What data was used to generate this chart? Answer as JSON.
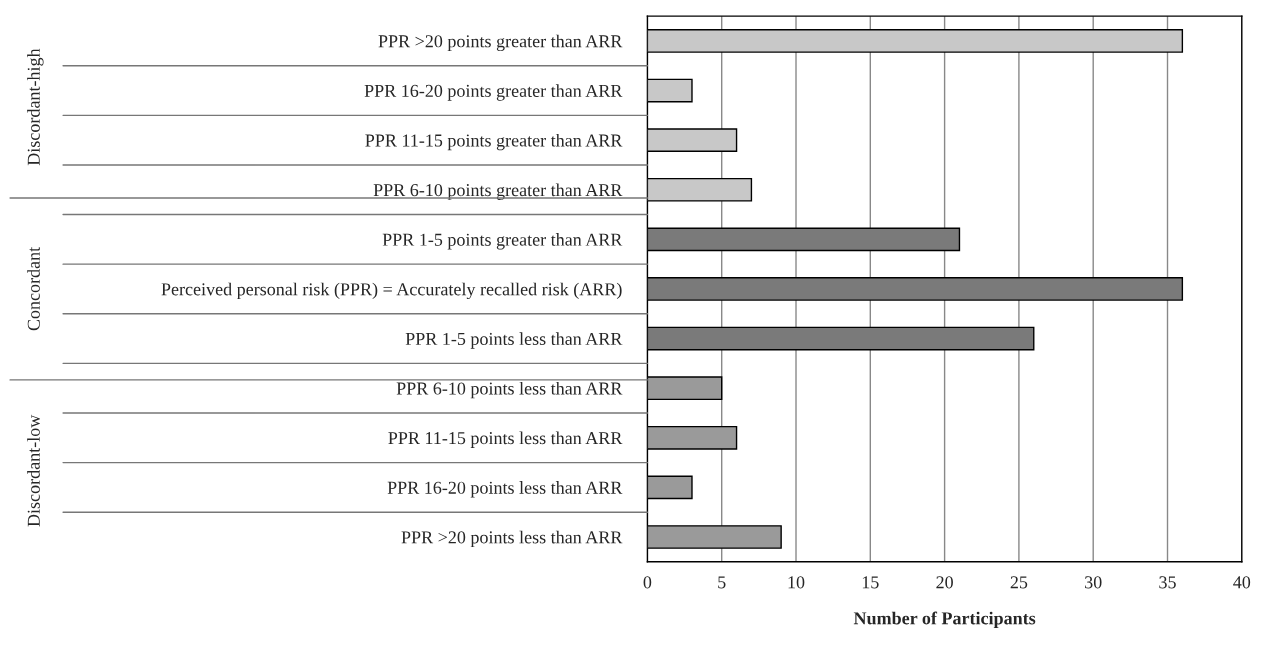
{
  "chart_data": {
    "type": "bar",
    "orientation": "horizontal",
    "categories": [
      "PPR >20 points greater than ARR",
      "PPR 16-20 points greater than ARR",
      "PPR 11-15 points greater than ARR",
      "PPR 6-10 points greater than ARR",
      "PPR 1-5 points greater than ARR",
      "Perceived personal risk (PPR) = Accurately recalled risk (ARR)",
      "PPR 1-5 points less than ARR",
      "PPR 6-10 points less than ARR",
      "PPR 11-15 points less than ARR",
      "PPR 16-20 points less than ARR",
      "PPR >20 points less than ARR"
    ],
    "values": [
      36,
      3,
      6,
      7,
      21,
      36,
      26,
      5,
      6,
      3,
      9
    ],
    "colors": [
      "#c8c8c8",
      "#c8c8c8",
      "#c8c8c8",
      "#c8c8c8",
      "#7a7a7a",
      "#7a7a7a",
      "#7a7a7a",
      "#9a9a9a",
      "#9a9a9a",
      "#9a9a9a",
      "#9a9a9a"
    ],
    "xlabel": "Number of Participants",
    "xlim": [
      0,
      40
    ],
    "xticks": [
      0,
      5,
      10,
      15,
      20,
      25,
      30,
      35,
      40
    ],
    "grid": "x",
    "annotations": [
      "Discordant-high",
      "Concordant",
      "Discordant-low"
    ]
  }
}
